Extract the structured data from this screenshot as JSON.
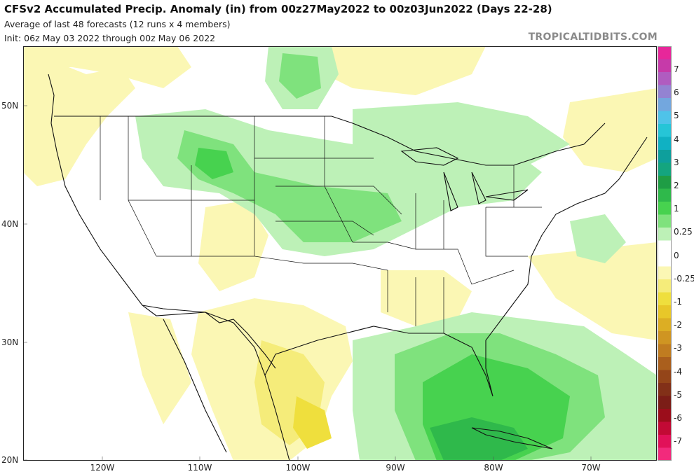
{
  "header": {
    "title": "CFSv2 Accumulated Precip. Anomaly (in) from 00z27May2022 to 00z03Jun2022 (Days 22-28)",
    "line2": "Average of last 48 forecasts (12 runs x 4 members)",
    "line3": "Init: 06z May 03 2022 through 00z May 06 2022",
    "credit": "TROPICALTIDBITS.COM"
  },
  "map": {
    "region": "CONUS",
    "lat_labels": [
      "50N",
      "40N",
      "30N",
      "20N"
    ],
    "lon_labels": [
      "120W",
      "110W",
      "100W",
      "90W",
      "80W",
      "70W"
    ]
  },
  "colorbar": {
    "labels": [
      "7",
      "6",
      "5",
      "4",
      "3",
      "2",
      "1",
      "0.25",
      "0",
      "-0.25",
      "-1",
      "-2",
      "-3",
      "-4",
      "-5",
      "-6",
      "-7"
    ],
    "colors": [
      "#e7279a",
      "#c63aa9",
      "#b05cc0",
      "#9383d2",
      "#73a7de",
      "#4fc3e9",
      "#26c5d7",
      "#10b1c3",
      "#0e9f9c",
      "#14a57f",
      "#1f9d45",
      "#2fb94b",
      "#47d24f",
      "#7fe27d",
      "#bdf1b7",
      "#ffffff",
      "#ffffff",
      "#fbf7b4",
      "#f5ec7a",
      "#efdf3d",
      "#e8c729",
      "#dcae24",
      "#cf9522",
      "#c07c20",
      "#aa5f1d",
      "#944519",
      "#823018",
      "#7b1d17",
      "#9b0d1b",
      "#c20a35",
      "#e11159",
      "#f22a7c"
    ]
  },
  "colors": {
    "light_green": "#bdf1b7",
    "green": "#7fe27d",
    "mid_green": "#47d24f",
    "deep_green": "#2fb94b",
    "light_yellow": "#fbf7b4",
    "yellow": "#f5ec7a",
    "gold": "#efdf3d"
  }
}
